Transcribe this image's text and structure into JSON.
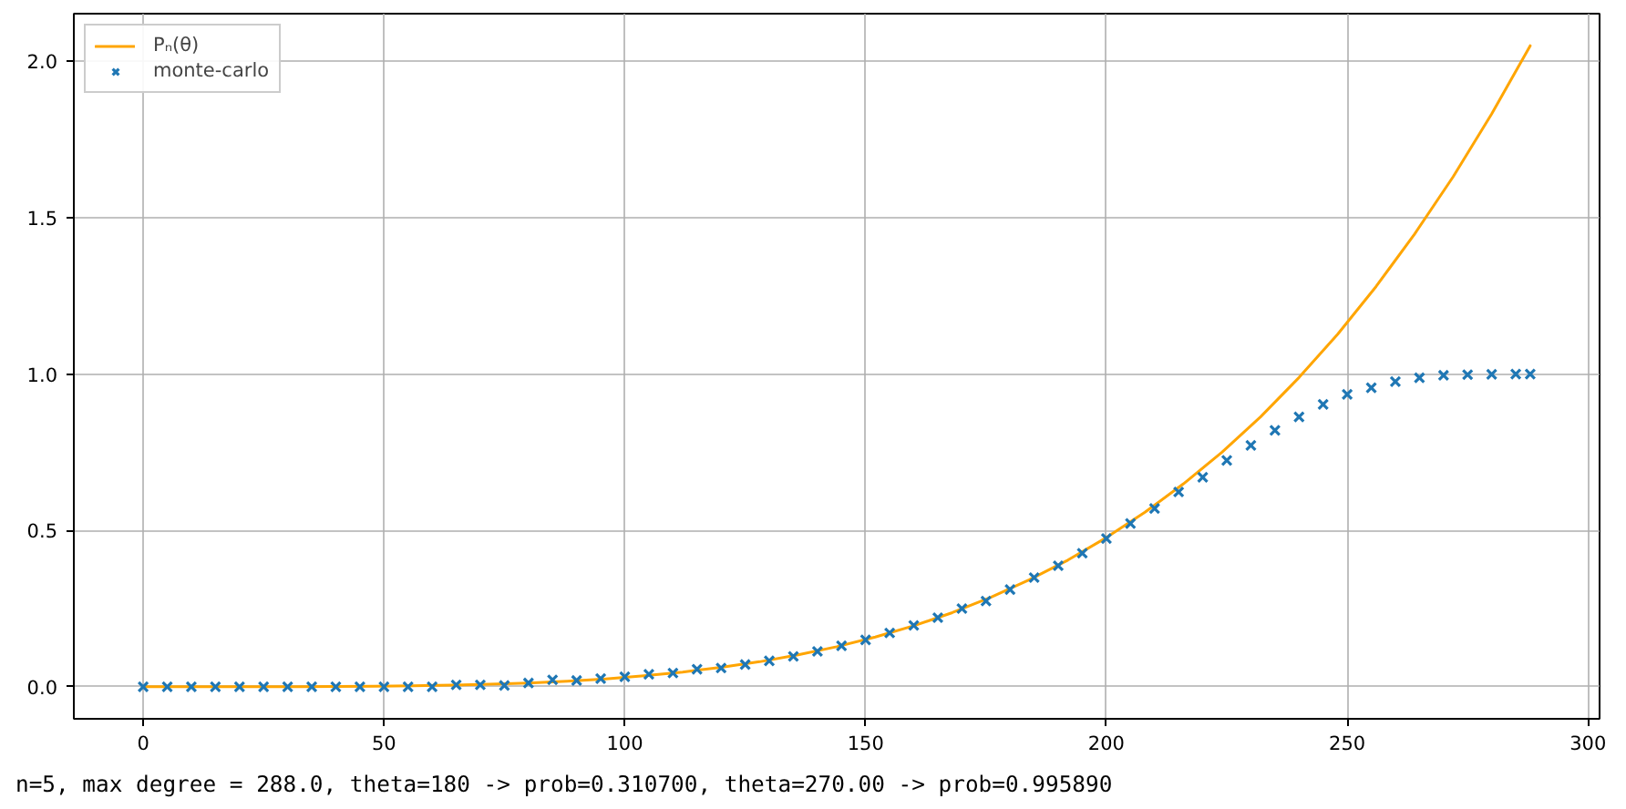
{
  "chart_data": {
    "type": "line",
    "series": [
      {
        "name": "Pₙ(θ)",
        "color": "#ffa500",
        "x": [
          0,
          8,
          16,
          24,
          32,
          40,
          48,
          56,
          64,
          72,
          80,
          88,
          96,
          104,
          112,
          120,
          128,
          136,
          144,
          152,
          160,
          168,
          176,
          184,
          192,
          200,
          208,
          216,
          224,
          232,
          240,
          248,
          256,
          264,
          272,
          280,
          288
        ],
        "values": [
          0,
          0,
          0,
          0,
          0,
          0.001,
          0.002,
          0.003,
          0.005,
          0.008,
          0.012,
          0.018,
          0.025,
          0.035,
          0.047,
          0.062,
          0.08,
          0.102,
          0.128,
          0.159,
          0.195,
          0.237,
          0.286,
          0.342,
          0.405,
          0.477,
          0.558,
          0.649,
          0.75,
          0.863,
          0.989,
          1.127,
          1.28,
          1.448,
          1.631,
          1.832,
          2.05
        ]
      },
      {
        "name": "monte-carlo",
        "type": "scatter",
        "color": "#1f77b4",
        "marker": "cross",
        "x": [
          0,
          5,
          10,
          15,
          20,
          25,
          30,
          35,
          40,
          45,
          50,
          55,
          60,
          65,
          70,
          75,
          80,
          85,
          90,
          95,
          100,
          105,
          110,
          115,
          120,
          125,
          130,
          135,
          140,
          145,
          150,
          155,
          160,
          165,
          170,
          175,
          180,
          185,
          190,
          195,
          200,
          205,
          210,
          215,
          220,
          225,
          230,
          235,
          240,
          245,
          250,
          255,
          260,
          265,
          270,
          275,
          280,
          285,
          288
        ],
        "values": [
          0,
          0,
          0,
          0,
          0,
          0,
          0,
          0,
          0,
          0,
          0,
          0,
          0,
          0.006,
          0.006,
          0.004,
          0.012,
          0.022,
          0.02,
          0.026,
          0.032,
          0.04,
          0.044,
          0.056,
          0.06,
          0.071,
          0.083,
          0.097,
          0.113,
          0.131,
          0.15,
          0.172,
          0.196,
          0.221,
          0.25,
          0.274,
          0.311,
          0.349,
          0.387,
          0.427,
          0.474,
          0.522,
          0.57,
          0.623,
          0.67,
          0.724,
          0.772,
          0.82,
          0.863,
          0.903,
          0.935,
          0.956,
          0.976,
          0.988,
          0.996,
          0.998,
          0.999,
          1.0,
          1.0
        ]
      }
    ],
    "xlim": [
      -14.4,
      302.4
    ],
    "xticks": [
      0,
      50,
      100,
      150,
      200,
      250,
      300
    ],
    "ylim": [
      -0.1025,
      2.1525
    ],
    "yticks": [
      {
        "value": 0,
        "label": "0.0"
      },
      {
        "value": 0.5,
        "label": "0.5"
      },
      {
        "value": 1,
        "label": "1.0"
      },
      {
        "value": 1.5,
        "label": "1.5"
      },
      {
        "value": 2,
        "label": "2.0"
      }
    ],
    "grid": true,
    "legend": "top left",
    "annotations": [
      "n=5, max degree = 288.0, theta=180 -> prob=0.310700, theta=270.00 -> prob=0.995890"
    ]
  }
}
